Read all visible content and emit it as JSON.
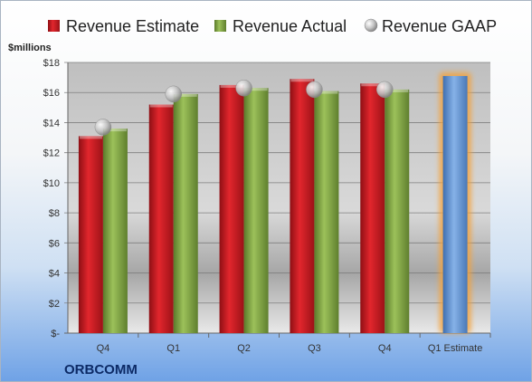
{
  "chart_data": {
    "type": "bar",
    "title": "",
    "company": "ORBCOMM",
    "unit_label": "$millions",
    "categories": [
      "Q4",
      "Q1",
      "Q2",
      "Q3",
      "Q4",
      "Q1 Estimate"
    ],
    "series": [
      {
        "name": "Revenue Estimate",
        "color": "#d42027",
        "values": [
          13.1,
          15.2,
          16.5,
          16.9,
          16.6,
          null
        ]
      },
      {
        "name": "Revenue Actual",
        "color": "#8db04f",
        "values": [
          13.6,
          15.9,
          16.3,
          16.1,
          16.2,
          null
        ]
      },
      {
        "name": "Revenue GAAP",
        "marker": "circle",
        "color": "#c8c8c8",
        "values": [
          13.7,
          15.9,
          16.3,
          16.2,
          16.2,
          null
        ]
      }
    ],
    "forecast": {
      "category": "Q1 Estimate",
      "value": 17.1,
      "color": "#6f9fd8",
      "glow": "#f4a23b"
    },
    "y_ticks": [
      "$-",
      "$2",
      "$4",
      "$6",
      "$8",
      "$10",
      "$12",
      "$14",
      "$16",
      "$18"
    ],
    "ylim": [
      0,
      18
    ],
    "grid": true,
    "legend_position": "top"
  }
}
